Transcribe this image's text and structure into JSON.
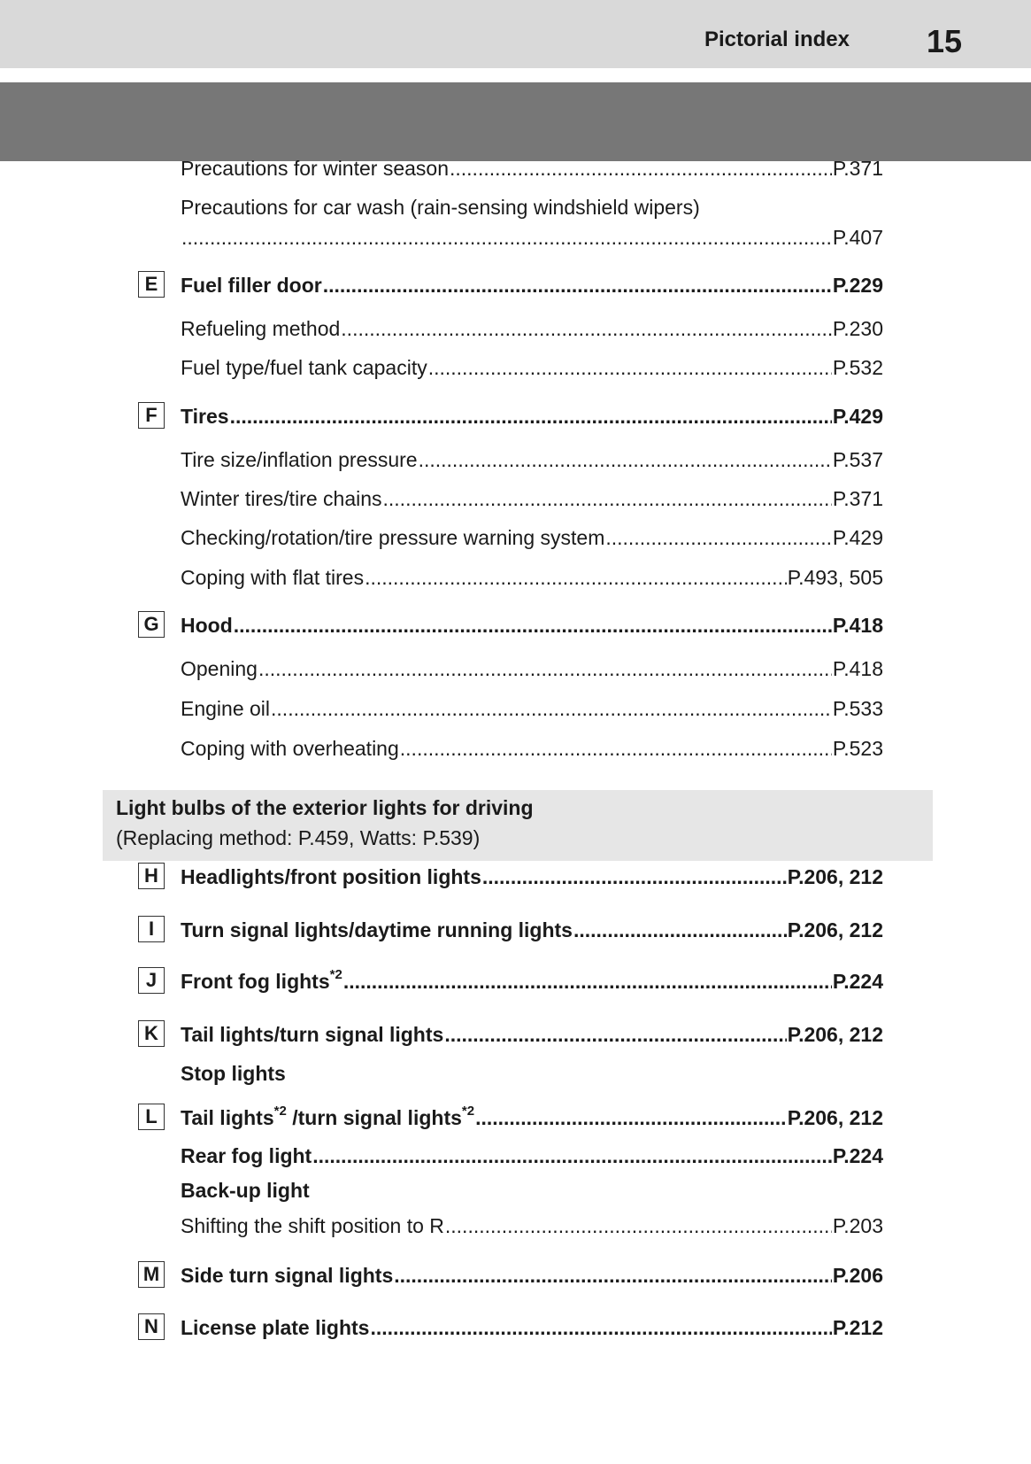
{
  "header": {
    "section_title": "Pictorial index",
    "page_number": "15"
  },
  "rows_top": [
    {
      "text": "Precautions for winter season",
      "ref": "P.371"
    },
    {
      "text": "Precautions for car wash (rain-sensing windshield wipers)",
      "ref": ""
    },
    {
      "text": "",
      "ref": "P.407"
    },
    {
      "letter": "E",
      "bold": true,
      "text": "Fuel filler door",
      "ref": "P.229"
    },
    {
      "text": "Refueling method",
      "ref": "P.230"
    },
    {
      "text": "Fuel type/fuel tank capacity ",
      "ref": "P.532"
    },
    {
      "letter": "F",
      "bold": true,
      "text": "Tires ",
      "ref": "P.429"
    },
    {
      "text": "Tire size/inflation pressure ",
      "ref": "P.537"
    },
    {
      "text": "Winter tires/tire chains ",
      "ref": "P.371"
    },
    {
      "text": "Checking/rotation/tire pressure warning system",
      "ref": "P.429"
    },
    {
      "text": "Coping with flat tires",
      "ref": "P.493, 505"
    },
    {
      "letter": "G",
      "bold": true,
      "text": "Hood",
      "ref": "P.418"
    },
    {
      "text": "Opening ",
      "ref": "P.418"
    },
    {
      "text": "Engine oil ",
      "ref": "P.533"
    },
    {
      "text": "Coping with overheating ",
      "ref": "P.523"
    }
  ],
  "lights_box": {
    "title": "Light bulbs of the exterior lights for driving",
    "subtitle": "(Replacing method: P.459, Watts: P.539)"
  },
  "rows_bottom": [
    {
      "letter": "H",
      "bold": true,
      "text": "Headlights/front position lights",
      "ref": "P.206, 212"
    },
    {
      "letter": "I",
      "bold": true,
      "text": "Turn signal lights/daytime running lights",
      "ref": "P.206, 212"
    },
    {
      "letter": "J",
      "bold": true,
      "parts": [
        "Front fog lights",
        "*2",
        " "
      ],
      "ref": "P.224"
    },
    {
      "letter": "K",
      "bold": true,
      "text": "Tail lights/turn signal lights ",
      "ref": "P.206, 212"
    },
    {
      "bold": true,
      "text": "Stop lights",
      "ref": "",
      "nodots": true
    },
    {
      "letter": "L",
      "bold": true,
      "parts": [
        "Tail lights",
        "*2",
        " /turn signal lights",
        "*2",
        " "
      ],
      "ref": "P.206, 212"
    },
    {
      "bold": true,
      "text": "Rear fog light",
      "ref": "P.224"
    },
    {
      "bold": true,
      "text": "Back-up light",
      "ref": "",
      "nodots": true
    },
    {
      "text": "Shifting the shift position to R ",
      "ref": "P.203"
    },
    {
      "letter": "M",
      "bold": true,
      "text": "Side turn signal lights ",
      "ref": "P.206"
    },
    {
      "letter": "N",
      "bold": true,
      "text": "License plate lights",
      "ref": "P.212"
    }
  ]
}
